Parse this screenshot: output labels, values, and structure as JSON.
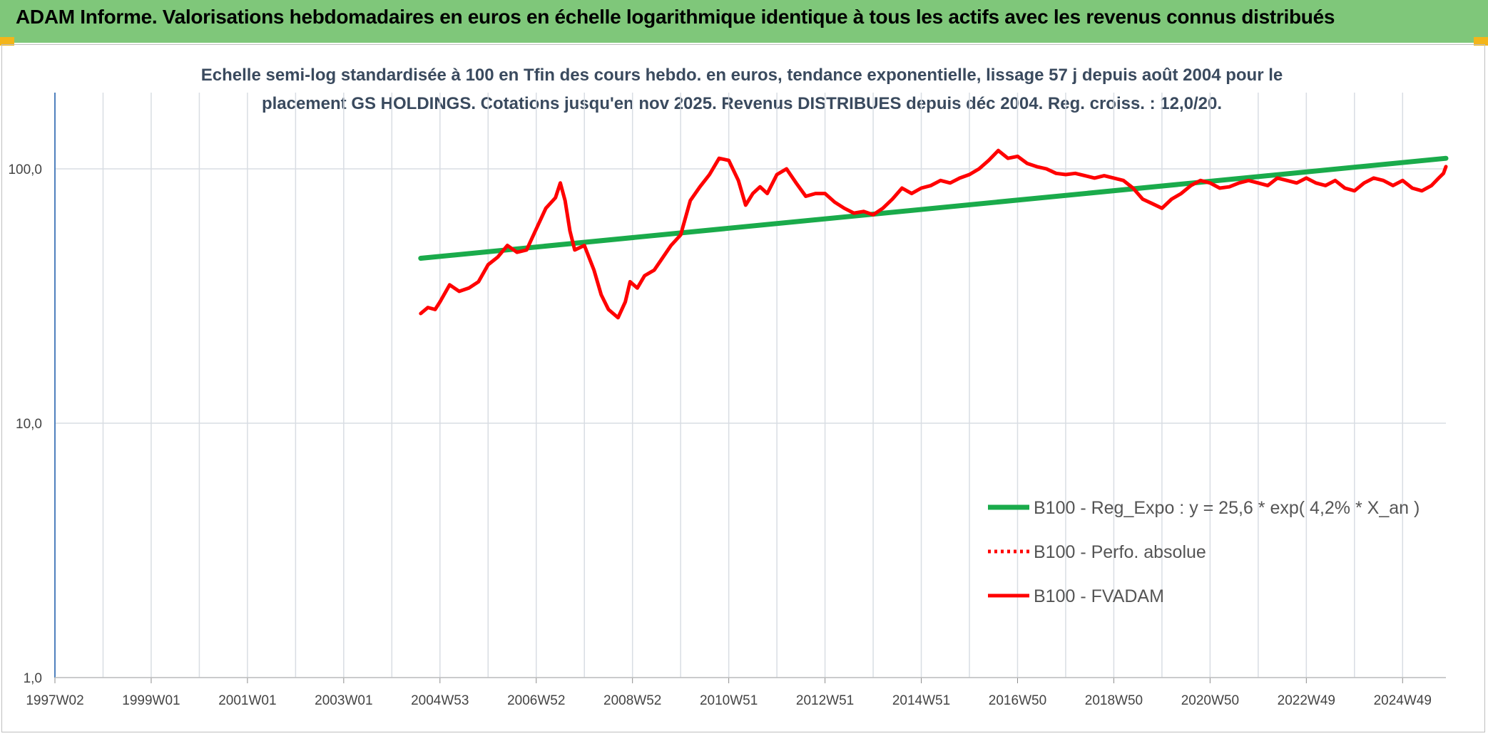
{
  "header": {
    "title": "ADAM Informe. Valorisations hebdomadaires en euros en échelle logarithmique identique à tous les actifs avec les revenus connus distribués"
  },
  "colors": {
    "header_bg": "#7fc77a",
    "trend": "#1aab4b",
    "price": "#ff0000",
    "grid": "#d9dde3",
    "axis": "#4f81bd"
  },
  "chart_data": {
    "type": "line",
    "title": "",
    "subtitle_line1": "Echelle semi-log standardisée à 100 en Tfin des cours hebdo. en euros, tendance exponentielle, lissage 57 j depuis août 2004 pour le",
    "subtitle_line2": "placement GS HOLDINGS. Cotations jusqu'en nov 2025. Revenus DISTRIBUES depuis déc 2004. Reg. croiss. : 12,0/20.",
    "xlabel": "",
    "ylabel": "",
    "y_scale": "log",
    "ylim": [
      1,
      200
    ],
    "y_ticks": [
      {
        "value": 1,
        "label": "1,0"
      },
      {
        "value": 10,
        "label": "10,0"
      },
      {
        "value": 100,
        "label": "100,0"
      }
    ],
    "x_range_years": [
      1997.0,
      2025.9
    ],
    "x_ticks": [
      {
        "year": 1997.0,
        "label": "1997W02"
      },
      {
        "year": 1999.0,
        "label": "1999W01"
      },
      {
        "year": 2001.0,
        "label": "2001W01"
      },
      {
        "year": 2003.0,
        "label": "2003W01"
      },
      {
        "year": 2005.0,
        "label": "2004W53"
      },
      {
        "year": 2007.0,
        "label": "2006W52"
      },
      {
        "year": 2009.0,
        "label": "2008W52"
      },
      {
        "year": 2011.0,
        "label": "2010W51"
      },
      {
        "year": 2013.0,
        "label": "2012W51"
      },
      {
        "year": 2015.0,
        "label": "2014W51"
      },
      {
        "year": 2017.0,
        "label": "2016W50"
      },
      {
        "year": 2019.0,
        "label": "2018W50"
      },
      {
        "year": 2021.0,
        "label": "2020W50"
      },
      {
        "year": 2023.0,
        "label": "2022W49"
      },
      {
        "year": 2025.0,
        "label": "2024W49"
      }
    ],
    "grid": true,
    "legend_position": "bottom-right",
    "series": [
      {
        "name": "B100 - Reg_Expo : y = 25,6 * exp( 4,2% *  X_an )",
        "style": "solid-thick",
        "color": "#1aab4b",
        "x": [
          2004.6,
          2025.9
        ],
        "y": [
          44.5,
          110.0
        ]
      },
      {
        "name": "B100 - Perfo. absolue",
        "style": "dotted",
        "color": "#ff0000",
        "x": [],
        "y": []
      },
      {
        "name": "B100 - FVADAM",
        "style": "solid",
        "color": "#ff0000",
        "x": [
          2004.6,
          2004.75,
          2004.9,
          2005.0,
          2005.2,
          2005.4,
          2005.6,
          2005.8,
          2006.0,
          2006.2,
          2006.4,
          2006.6,
          2006.8,
          2007.0,
          2007.2,
          2007.4,
          2007.5,
          2007.6,
          2007.7,
          2007.8,
          2008.0,
          2008.2,
          2008.35,
          2008.5,
          2008.7,
          2008.85,
          2008.95,
          2009.1,
          2009.25,
          2009.45,
          2009.6,
          2009.8,
          2010.0,
          2010.2,
          2010.4,
          2010.6,
          2010.8,
          2011.0,
          2011.2,
          2011.35,
          2011.5,
          2011.65,
          2011.8,
          2012.0,
          2012.2,
          2012.4,
          2012.6,
          2012.8,
          2013.0,
          2013.2,
          2013.4,
          2013.6,
          2013.8,
          2014.0,
          2014.2,
          2014.4,
          2014.6,
          2014.8,
          2015.0,
          2015.2,
          2015.4,
          2015.6,
          2015.8,
          2016.0,
          2016.2,
          2016.4,
          2016.6,
          2016.8,
          2017.0,
          2017.2,
          2017.4,
          2017.6,
          2017.8,
          2018.0,
          2018.2,
          2018.4,
          2018.6,
          2018.8,
          2019.0,
          2019.2,
          2019.4,
          2019.6,
          2019.8,
          2020.0,
          2020.2,
          2020.4,
          2020.6,
          2020.8,
          2021.0,
          2021.2,
          2021.4,
          2021.6,
          2021.8,
          2022.0,
          2022.2,
          2022.4,
          2022.6,
          2022.8,
          2023.0,
          2023.2,
          2023.4,
          2023.6,
          2023.8,
          2024.0,
          2024.2,
          2024.4,
          2024.6,
          2024.8,
          2025.0,
          2025.2,
          2025.4,
          2025.6,
          2025.75,
          2025.85,
          2025.9
        ],
        "y": [
          27,
          28.5,
          28,
          30,
          35,
          33,
          34,
          36,
          42,
          45,
          50,
          47,
          48,
          58,
          70,
          77,
          88,
          75,
          57,
          48,
          50,
          40,
          32,
          28,
          26,
          30,
          36,
          34,
          38,
          40,
          44,
          50,
          55,
          75,
          85,
          95,
          110,
          108,
          90,
          72,
          80,
          85,
          80,
          95,
          100,
          88,
          78,
          80,
          80,
          74,
          70,
          67,
          68,
          66,
          70,
          76,
          84,
          80,
          84,
          86,
          90,
          88,
          92,
          95,
          100,
          108,
          118,
          110,
          112,
          105,
          102,
          100,
          96,
          95,
          96,
          94,
          92,
          94,
          92,
          90,
          84,
          76,
          73,
          70,
          76,
          80,
          86,
          90,
          88,
          84,
          85,
          88,
          90,
          88,
          86,
          92,
          90,
          88,
          92,
          88,
          86,
          90,
          84,
          82,
          88,
          92,
          90,
          86,
          90,
          84,
          82,
          86,
          92,
          96,
          102
        ]
      }
    ]
  }
}
